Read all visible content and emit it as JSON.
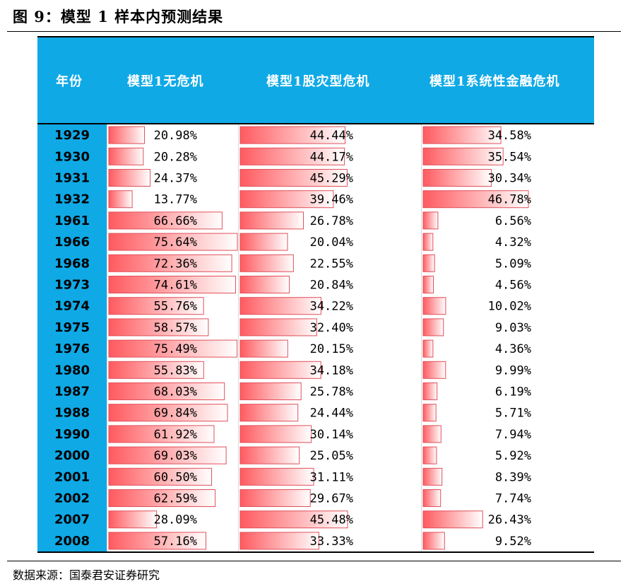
{
  "figure": {
    "title": "图 9：模型 1 样本内预测结果",
    "source": "数据来源：国泰君安证券研究"
  },
  "colors": {
    "header_bg": "#0fa9e6",
    "bar_start": "#ff5a5f",
    "bar_end": "#ffffff",
    "bar_border": "#e0505a"
  },
  "chart_data": {
    "type": "table",
    "columns": [
      "年份",
      "模型1无危机",
      "模型1股灾型危机",
      "模型1系统性金融危机"
    ],
    "rows": [
      {
        "year": "1929",
        "no_crisis": "20.98%",
        "stock_crash": "44.44%",
        "systemic": "34.58%"
      },
      {
        "year": "1930",
        "no_crisis": "20.28%",
        "stock_crash": "44.17%",
        "systemic": "35.54%"
      },
      {
        "year": "1931",
        "no_crisis": "24.37%",
        "stock_crash": "45.29%",
        "systemic": "30.34%"
      },
      {
        "year": "1932",
        "no_crisis": "13.77%",
        "stock_crash": "39.46%",
        "systemic": "46.78%"
      },
      {
        "year": "1961",
        "no_crisis": "66.66%",
        "stock_crash": "26.78%",
        "systemic": "6.56%"
      },
      {
        "year": "1966",
        "no_crisis": "75.64%",
        "stock_crash": "20.04%",
        "systemic": "4.32%"
      },
      {
        "year": "1968",
        "no_crisis": "72.36%",
        "stock_crash": "22.55%",
        "systemic": "5.09%"
      },
      {
        "year": "1973",
        "no_crisis": "74.61%",
        "stock_crash": "20.84%",
        "systemic": "4.56%"
      },
      {
        "year": "1974",
        "no_crisis": "55.76%",
        "stock_crash": "34.22%",
        "systemic": "10.02%"
      },
      {
        "year": "1975",
        "no_crisis": "58.57%",
        "stock_crash": "32.40%",
        "systemic": "9.03%"
      },
      {
        "year": "1976",
        "no_crisis": "75.49%",
        "stock_crash": "20.15%",
        "systemic": "4.36%"
      },
      {
        "year": "1980",
        "no_crisis": "55.83%",
        "stock_crash": "34.18%",
        "systemic": "9.99%"
      },
      {
        "year": "1987",
        "no_crisis": "68.03%",
        "stock_crash": "25.78%",
        "systemic": "6.19%"
      },
      {
        "year": "1988",
        "no_crisis": "69.84%",
        "stock_crash": "24.44%",
        "systemic": "5.71%"
      },
      {
        "year": "1990",
        "no_crisis": "61.92%",
        "stock_crash": "30.14%",
        "systemic": "7.94%"
      },
      {
        "year": "2000",
        "no_crisis": "69.03%",
        "stock_crash": "25.05%",
        "systemic": "5.92%"
      },
      {
        "year": "2001",
        "no_crisis": "60.50%",
        "stock_crash": "31.11%",
        "systemic": "8.39%"
      },
      {
        "year": "2002",
        "no_crisis": "62.59%",
        "stock_crash": "29.67%",
        "systemic": "7.74%"
      },
      {
        "year": "2007",
        "no_crisis": "28.09%",
        "stock_crash": "45.48%",
        "systemic": "26.43%"
      },
      {
        "year": "2008",
        "no_crisis": "57.16%",
        "stock_crash": "33.33%",
        "systemic": "9.52%"
      }
    ]
  }
}
